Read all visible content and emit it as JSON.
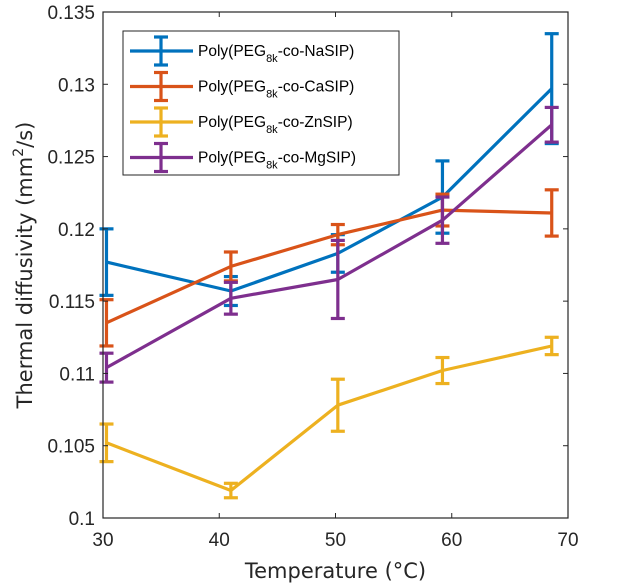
{
  "chart_data": {
    "type": "line",
    "title": "",
    "xlabel": "Temperature (°C)",
    "ylabel": "Thermal diffusivity (mm²/s)",
    "ylabel_parts": {
      "pre": "Thermal diffusivity (mm",
      "sup": "2",
      "post": "/s)"
    },
    "xlim": [
      30,
      70
    ],
    "ylim": [
      0.1,
      0.135
    ],
    "xticks": [
      30,
      40,
      50,
      60,
      70
    ],
    "xtick_labels": [
      "30",
      "40",
      "50",
      "60",
      "70"
    ],
    "yticks": [
      0.1,
      0.105,
      0.11,
      0.115,
      0.12,
      0.125,
      0.13,
      0.135
    ],
    "ytick_labels": [
      "0.1",
      "0.105",
      "0.11",
      "0.115",
      "0.12",
      "0.125",
      "0.13",
      "0.135"
    ],
    "grid": false,
    "legend_position": "top-left",
    "error_bars": true,
    "series": [
      {
        "name": "Poly(PEG8k-co-NaSIP)",
        "label_parts": {
          "pre": "Poly(PEG",
          "sub": "8k",
          "post": "-co-NaSIP)"
        },
        "color": "#0072BD",
        "x": [
          30.3,
          41.0,
          50.2,
          59.2,
          68.6
        ],
        "y": [
          0.1177,
          0.1157,
          0.1183,
          0.1222,
          0.1297
        ],
        "err": [
          0.0023,
          0.001,
          0.0013,
          0.0025,
          0.0038
        ]
      },
      {
        "name": "Poly(PEG8k-co-CaSIP)",
        "label_parts": {
          "pre": "Poly(PEG",
          "sub": "8k",
          "post": "-co-CaSIP)"
        },
        "color": "#D95319",
        "x": [
          30.3,
          41.0,
          50.2,
          59.2,
          68.6
        ],
        "y": [
          0.1135,
          0.1174,
          0.1196,
          0.1213,
          0.1211
        ],
        "err": [
          0.0016,
          0.001,
          0.0007,
          0.0011,
          0.0016
        ]
      },
      {
        "name": "Poly(PEG8k-co-ZnSIP)",
        "label_parts": {
          "pre": "Poly(PEG",
          "sub": "8k",
          "post": "-co-ZnSIP)"
        },
        "color": "#EDB120",
        "x": [
          30.3,
          41.0,
          50.2,
          59.2,
          68.6
        ],
        "y": [
          0.1052,
          0.1019,
          0.1078,
          0.1102,
          0.1119
        ],
        "err": [
          0.0013,
          0.0005,
          0.0018,
          0.0009,
          0.0006
        ]
      },
      {
        "name": "Poly(PEG8k-co-MgSIP)",
        "label_parts": {
          "pre": "Poly(PEG",
          "sub": "8k",
          "post": "-co-MgSIP)"
        },
        "color": "#7E2F8E",
        "x": [
          30.3,
          41.0,
          50.2,
          59.2,
          68.6
        ],
        "y": [
          0.1104,
          0.1152,
          0.1165,
          0.1206,
          0.1272
        ],
        "err": [
          0.001,
          0.0011,
          0.0027,
          0.0016,
          0.0012
        ]
      }
    ]
  }
}
